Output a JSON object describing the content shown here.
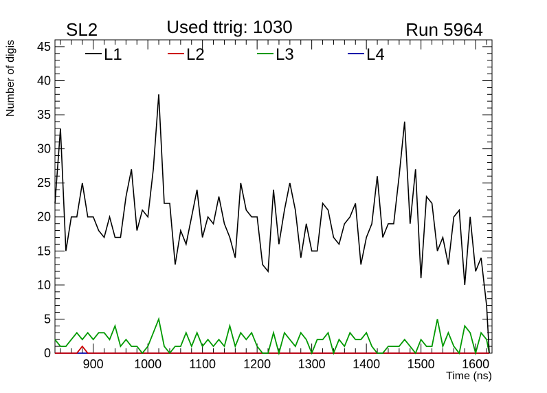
{
  "header": {
    "left": "SL2",
    "center": "Used ttrig: 1030",
    "right": "Run 5964"
  },
  "chart_data": {
    "type": "line",
    "xlabel": "Time (ns)",
    "ylabel": "Number of digis",
    "xlim": [
      830,
      1630
    ],
    "ylim": [
      0,
      46
    ],
    "x_ticks": [
      900,
      1000,
      1100,
      1200,
      1300,
      1400,
      1500,
      1600
    ],
    "y_ticks": [
      0,
      5,
      10,
      15,
      20,
      25,
      30,
      35,
      40,
      45
    ],
    "legend_placement": "top-left",
    "grid": false,
    "x": [
      830,
      840,
      850,
      860,
      870,
      880,
      890,
      900,
      910,
      920,
      930,
      940,
      950,
      960,
      970,
      980,
      990,
      1000,
      1010,
      1020,
      1030,
      1040,
      1050,
      1060,
      1070,
      1080,
      1090,
      1100,
      1110,
      1120,
      1130,
      1140,
      1150,
      1160,
      1170,
      1180,
      1190,
      1200,
      1210,
      1220,
      1230,
      1240,
      1250,
      1260,
      1270,
      1280,
      1290,
      1300,
      1310,
      1320,
      1330,
      1340,
      1350,
      1360,
      1370,
      1380,
      1390,
      1400,
      1410,
      1420,
      1430,
      1440,
      1450,
      1460,
      1470,
      1480,
      1490,
      1500,
      1510,
      1520,
      1530,
      1540,
      1550,
      1560,
      1570,
      1580,
      1590,
      1600,
      1610,
      1620,
      1625
    ],
    "series": [
      {
        "name": "L1",
        "color": "#000000",
        "values": [
          22,
          33,
          15,
          20,
          20,
          25,
          20,
          20,
          18,
          17,
          20,
          17,
          17,
          23,
          27,
          18,
          21,
          20,
          27,
          38,
          22,
          22,
          13,
          18,
          16,
          20,
          24,
          17,
          20,
          19,
          23,
          19,
          17,
          14,
          25,
          21,
          20,
          20,
          13,
          12,
          24,
          16,
          21,
          25,
          21,
          14,
          19,
          15,
          15,
          22,
          21,
          17,
          16,
          19,
          20,
          22,
          13,
          17,
          19,
          26,
          17,
          19,
          19,
          26,
          34,
          19,
          27,
          11,
          23,
          22,
          15,
          17,
          13,
          20,
          21,
          10,
          20,
          12,
          14,
          7,
          0
        ]
      },
      {
        "name": "L2",
        "color": "#cc0000",
        "values": [
          0,
          0,
          0,
          0,
          0,
          1,
          0,
          0,
          0,
          0,
          0,
          0,
          0,
          0,
          0,
          0,
          0,
          0,
          0,
          0,
          0,
          0,
          0,
          0,
          0,
          0,
          0,
          0,
          0,
          0,
          0,
          0,
          0,
          0,
          0,
          0,
          0,
          0,
          0,
          0,
          0,
          0,
          0,
          0,
          0,
          0,
          0,
          0,
          0,
          0,
          0,
          0,
          0,
          0,
          0,
          0,
          0,
          0,
          0,
          0,
          0,
          0,
          0,
          0,
          0,
          0,
          0,
          0,
          0,
          0,
          0,
          0,
          0,
          0,
          0,
          0,
          0,
          0,
          0,
          0,
          0
        ]
      },
      {
        "name": "L3",
        "color": "#009900",
        "values": [
          2,
          1,
          1,
          2,
          3,
          2,
          3,
          2,
          3,
          3,
          2,
          4,
          1,
          2,
          1,
          1,
          0,
          1,
          3,
          5,
          1,
          0,
          1,
          1,
          3,
          1,
          3,
          1,
          2,
          1,
          2,
          1,
          4,
          1,
          3,
          2,
          3,
          1,
          0,
          0,
          3,
          0,
          3,
          2,
          1,
          3,
          2,
          0,
          2,
          2,
          3,
          0,
          2,
          1,
          3,
          2,
          2,
          3,
          1,
          0,
          0,
          1,
          1,
          1,
          2,
          1,
          0,
          2,
          1,
          1,
          5,
          1,
          3,
          1,
          0,
          4,
          3,
          0,
          3,
          2,
          0
        ]
      },
      {
        "name": "L4",
        "color": "#0000aa",
        "values": [
          0,
          0,
          0,
          0,
          0,
          0,
          0,
          0,
          0,
          0,
          0,
          0,
          0,
          0,
          0,
          0,
          0,
          0,
          0,
          0,
          0,
          0,
          0,
          0,
          0,
          0,
          0,
          0,
          0,
          0,
          0,
          0,
          0,
          0,
          0,
          0,
          0,
          0,
          0,
          0,
          0,
          0,
          0,
          0,
          0,
          0,
          0,
          0,
          0,
          0,
          0,
          0,
          0,
          0,
          0,
          0,
          0,
          0,
          0,
          0,
          0,
          0,
          0,
          0,
          0,
          0,
          0,
          0,
          0,
          0,
          0,
          0,
          0,
          0,
          0,
          0,
          0,
          0,
          0,
          0,
          0
        ]
      }
    ]
  }
}
